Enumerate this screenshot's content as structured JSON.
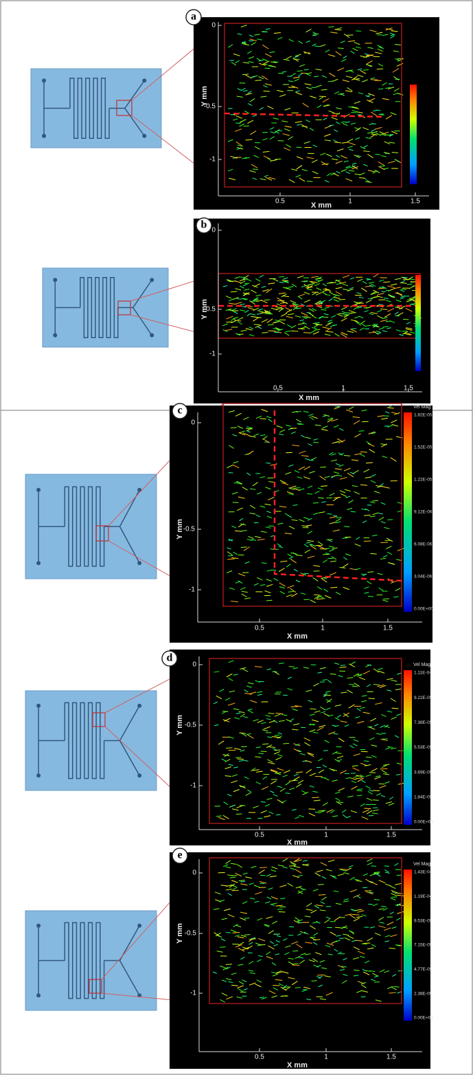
{
  "panels": [
    {
      "label": "a",
      "x_label": "X mm",
      "y_label": "Y mm",
      "x_ticks": [
        "0.5",
        "1",
        "1.5"
      ],
      "y_ticks": [
        "0",
        "-0.5",
        "-1"
      ]
    },
    {
      "label": "b",
      "x_label": "X mm",
      "y_label": "Y mm",
      "x_ticks": [
        "0.5",
        "1",
        "1.5"
      ],
      "y_ticks": [
        "0",
        "-0.5",
        "-1"
      ]
    },
    {
      "label": "c",
      "x_label": "X mm",
      "y_label": "Y mm",
      "x_ticks": [
        "0.5",
        "1",
        "1.5"
      ],
      "y_ticks": [
        "0",
        "-0.5",
        "-1"
      ],
      "colorbar": {
        "title": "Vel Mag",
        "labels": [
          "1.82E-05",
          "1.52E-05",
          "1.22E-05",
          "9.12E-06",
          "6.08E-06",
          "3.04E-06",
          "0.00E+00"
        ]
      }
    },
    {
      "label": "d",
      "x_label": "X mm",
      "y_label": "Y mm",
      "x_ticks": [
        "0.5",
        "1",
        "1.5"
      ],
      "y_ticks": [
        "0",
        "-0.5",
        "-1"
      ],
      "colorbar": {
        "title": "Vel Mag",
        "labels": [
          "1.11E-04",
          "9.22E-05",
          "7.38E-05",
          "5.53E-05",
          "3.69E-05",
          "1.84E-05",
          "0.00E+00"
        ]
      }
    },
    {
      "label": "e",
      "x_label": "X mm",
      "y_label": "Y mm",
      "x_ticks": [
        "0.5",
        "1",
        "1.5"
      ],
      "y_ticks": [
        "0",
        "-0.5",
        "-1"
      ],
      "colorbar": {
        "title": "Vel Mag",
        "labels": [
          "1.43E-04",
          "1.19E-04",
          "9.53E-05",
          "7.15E-05",
          "4.77E-05",
          "2.38E-05",
          "0.00E+00"
        ]
      }
    }
  ]
}
